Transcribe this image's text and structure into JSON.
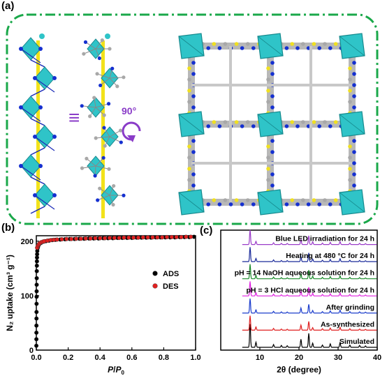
{
  "figure": {
    "panel_a_label": "(a)",
    "panel_b_label": "(b)",
    "panel_c_label": "(c)",
    "equiv_symbol": "≡",
    "rotation_label": "90°"
  },
  "colors": {
    "frame": "#1aa84a",
    "polyhedron": "#2fc4c8",
    "chain_bond": "#1b2ab8",
    "axis_rod": "#f2e21a",
    "nitrogen": "#1530d0",
    "carbon": "#a8a8a8",
    "sulfur": "#f0e020",
    "accent_purple": "#8a3cc8",
    "ads": "#000000",
    "des": "#e02020"
  },
  "chart_data": [
    {
      "type": "scatter",
      "xlabel_prefix": "P",
      "xlabel_sep": "/",
      "xlabel_suffix": "P",
      "xlabel_sub": "0",
      "ylabel": "N₂ uptake (cm³ g⁻¹)",
      "xlim": [
        0,
        1.0
      ],
      "ylim": [
        0,
        210
      ],
      "xticks": [
        "0.0",
        "0.2",
        "0.4",
        "0.6",
        "0.8",
        "1.0"
      ],
      "yticks": [
        "0",
        "100",
        "200"
      ],
      "legend_position": "right",
      "series": [
        {
          "name": "ADS",
          "color": "#000000",
          "x": [
            0.0002,
            0.0004,
            0.0006,
            0.0008,
            0.001,
            0.0012,
            0.0015,
            0.0018,
            0.002,
            0.0023,
            0.0026,
            0.003,
            0.0034,
            0.0038,
            0.0043,
            0.005,
            0.006,
            0.008,
            0.011,
            0.015,
            0.02,
            0.03,
            0.045,
            0.06,
            0.08,
            0.1,
            0.12,
            0.15,
            0.18,
            0.21,
            0.24,
            0.27,
            0.3,
            0.33,
            0.36,
            0.39,
            0.42,
            0.45,
            0.48,
            0.51,
            0.54,
            0.57,
            0.6,
            0.63,
            0.66,
            0.69,
            0.72,
            0.75,
            0.78,
            0.81,
            0.84,
            0.87,
            0.9,
            0.93,
            0.96,
            0.99
          ],
          "y": [
            8,
            20,
            32,
            45,
            58,
            70,
            85,
            98,
            108,
            120,
            132,
            145,
            155,
            163,
            170,
            176,
            182,
            187,
            190,
            193,
            195,
            197,
            199,
            200,
            201,
            202,
            202.5,
            203,
            203.5,
            204,
            204,
            204.5,
            204.5,
            205,
            205,
            205,
            205.5,
            205.5,
            205.5,
            206,
            206,
            206,
            206,
            206.5,
            206.5,
            206.5,
            206.5,
            207,
            207,
            207,
            207,
            207,
            207.5,
            207.5,
            207.5,
            208
          ]
        },
        {
          "name": "DES",
          "color": "#e02020",
          "x": [
            0.005,
            0.01,
            0.015,
            0.02,
            0.03,
            0.04,
            0.05,
            0.07,
            0.09,
            0.11,
            0.13,
            0.16,
            0.19,
            0.22,
            0.25,
            0.28,
            0.31,
            0.34,
            0.37,
            0.4,
            0.43,
            0.46,
            0.49,
            0.52,
            0.55,
            0.58,
            0.61,
            0.64,
            0.67,
            0.7,
            0.73,
            0.76,
            0.79,
            0.82,
            0.85,
            0.88,
            0.91,
            0.94,
            0.97
          ],
          "y": [
            188,
            192,
            194,
            196,
            198,
            199,
            200,
            201,
            202,
            202.5,
            203,
            203.5,
            204,
            204,
            204.5,
            204.5,
            205,
            205,
            205.5,
            205.5,
            205.5,
            206,
            206,
            206,
            206.5,
            206.5,
            206.5,
            206.5,
            207,
            207,
            207,
            207,
            207,
            207.5,
            207.5,
            207.5,
            207.5,
            208,
            208
          ]
        }
      ]
    },
    {
      "type": "line",
      "xlabel": "2θ (degree)",
      "xlim": [
        0,
        40
      ],
      "xticks": [
        "10",
        "20",
        "30",
        "40"
      ],
      "series": [
        {
          "name": "Simulated",
          "color": "#000000"
        },
        {
          "name": "As-synthesized",
          "color": "#e02020"
        },
        {
          "name": "After grinding",
          "color": "#1a3ccc"
        },
        {
          "name": "pH = 3 HCl aqueous solution for 24 h",
          "color": "#e020e0"
        },
        {
          "name": "pH = 14 NaOH aqueous solution for 24 h",
          "color": "#1a8a2a"
        },
        {
          "name": "Heating at 480 °C for 24 h",
          "color": "#1a2a9a"
        },
        {
          "name": "Blue LED irradiation for 24 h",
          "color": "#9a3cc8"
        }
      ],
      "peaks_2theta": [
        7.5,
        9.0,
        13.5,
        15.5,
        17.0,
        20.5,
        22.5,
        23.5,
        26.0,
        28.0,
        30.5,
        33.0,
        35.5,
        37.0
      ],
      "peak_intensity": [
        1.0,
        0.22,
        0.12,
        0.08,
        0.07,
        0.35,
        0.6,
        0.18,
        0.1,
        0.15,
        0.2,
        0.1,
        0.08,
        0.06
      ]
    }
  ]
}
